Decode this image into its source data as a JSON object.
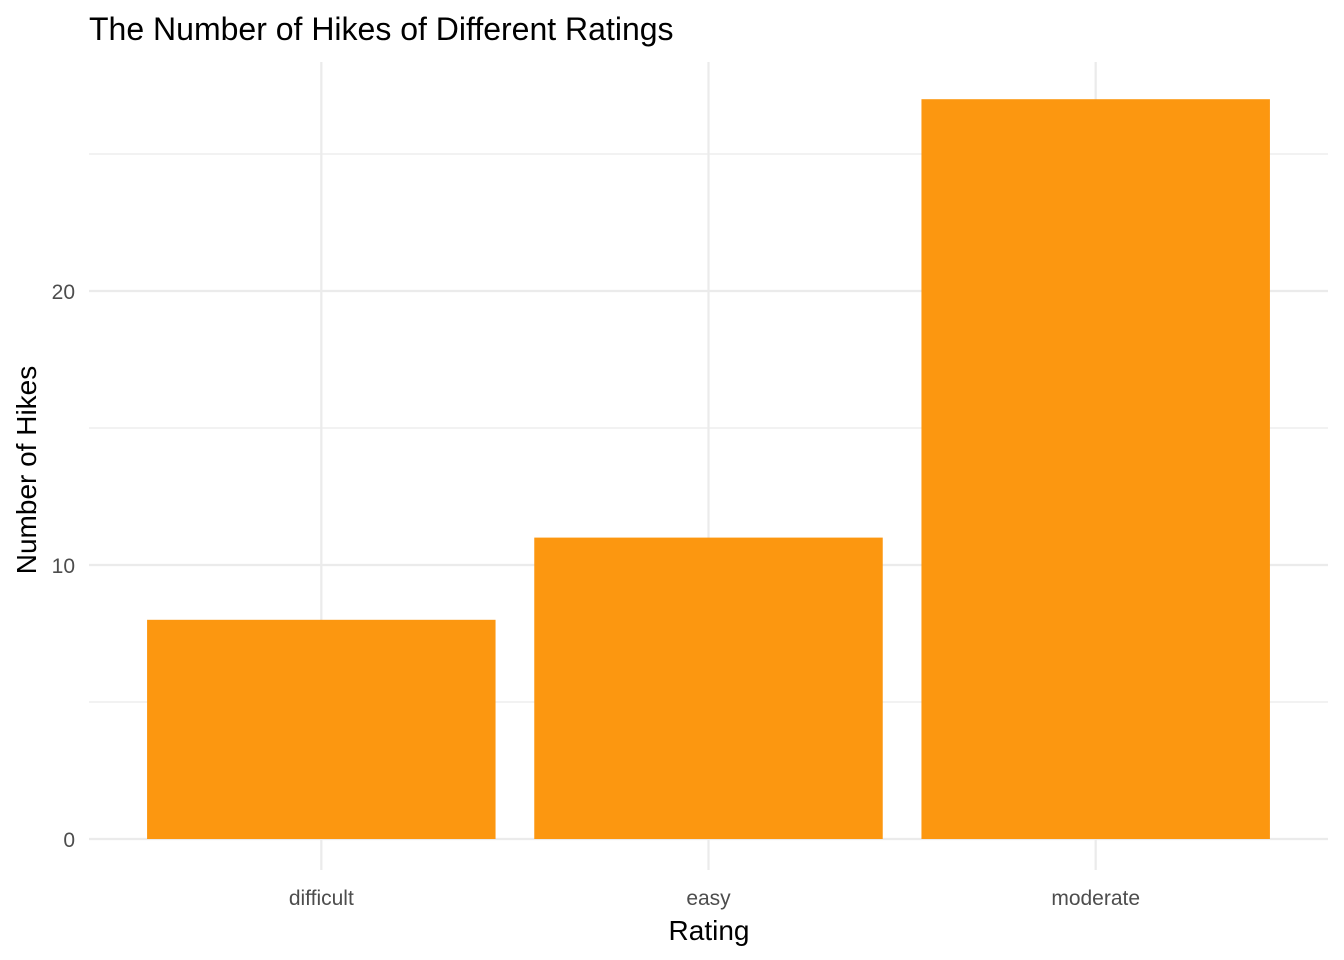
{
  "chart_data": {
    "type": "bar",
    "title": "The Number of Hikes of Different Ratings",
    "xlabel": "Rating",
    "ylabel": "Number of Hikes",
    "categories": [
      "difficult",
      "easy",
      "moderate"
    ],
    "values": [
      8,
      11,
      27
    ],
    "ylim": [
      0,
      28
    ],
    "yticks": [
      0,
      10,
      20
    ],
    "yticks_minor": [
      5,
      15,
      25
    ],
    "grid": true,
    "legend": "none",
    "bar_color": "#FC9710"
  }
}
